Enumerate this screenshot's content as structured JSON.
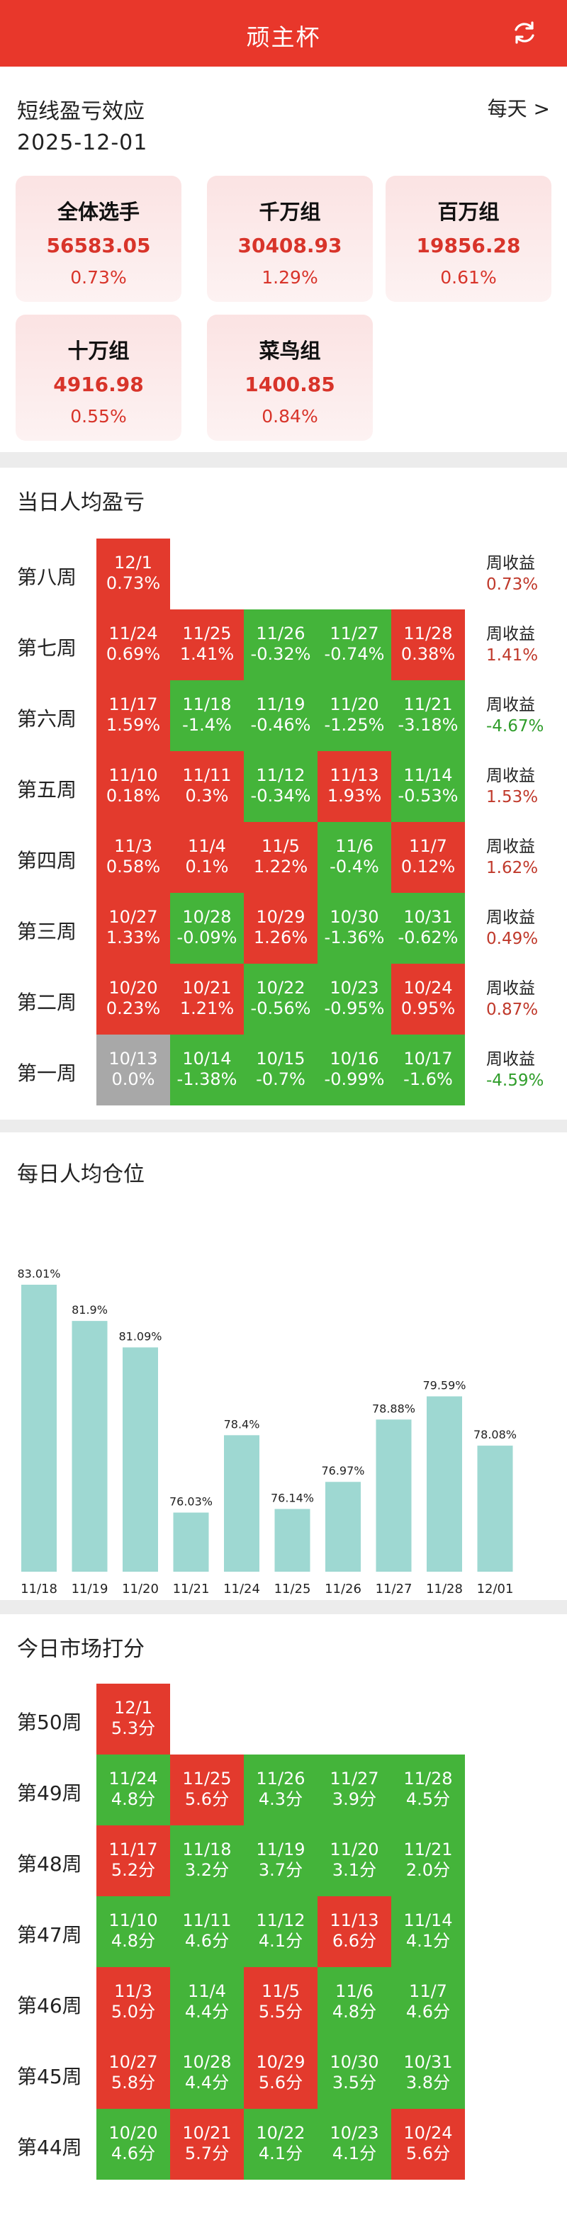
{
  "header": {
    "title": "顽主杯"
  },
  "profit": {
    "title": "短线盈亏效应",
    "date": "2025-12-01",
    "frequency": "每天 >",
    "cards": [
      {
        "name": "全体选手",
        "value": "56583.05",
        "pct": "0.73%"
      },
      {
        "name": "千万组",
        "value": "30408.93",
        "pct": "1.29%"
      },
      {
        "name": "百万组",
        "value": "19856.28",
        "pct": "0.61%"
      },
      {
        "name": "十万组",
        "value": "4916.98",
        "pct": "0.55%"
      },
      {
        "name": "菜鸟组",
        "value": "1400.85",
        "pct": "0.84%"
      }
    ]
  },
  "daily_pnl": {
    "title": "当日人均盈亏",
    "weekly_label": "周收益",
    "weeks": [
      {
        "label": "第八周",
        "weekly": "0.73%",
        "weekly_sign": "pos",
        "cells": [
          {
            "date": "12/1",
            "value": "0.73%",
            "color": "red"
          }
        ]
      },
      {
        "label": "第七周",
        "weekly": "1.41%",
        "weekly_sign": "pos",
        "cells": [
          {
            "date": "11/24",
            "value": "0.69%",
            "color": "red"
          },
          {
            "date": "11/25",
            "value": "1.41%",
            "color": "red"
          },
          {
            "date": "11/26",
            "value": "-0.32%",
            "color": "green"
          },
          {
            "date": "11/27",
            "value": "-0.74%",
            "color": "green"
          },
          {
            "date": "11/28",
            "value": "0.38%",
            "color": "red"
          }
        ]
      },
      {
        "label": "第六周",
        "weekly": "-4.67%",
        "weekly_sign": "neg",
        "cells": [
          {
            "date": "11/17",
            "value": "1.59%",
            "color": "red"
          },
          {
            "date": "11/18",
            "value": "-1.4%",
            "color": "green"
          },
          {
            "date": "11/19",
            "value": "-0.46%",
            "color": "green"
          },
          {
            "date": "11/20",
            "value": "-1.25%",
            "color": "green"
          },
          {
            "date": "11/21",
            "value": "-3.18%",
            "color": "green"
          }
        ]
      },
      {
        "label": "第五周",
        "weekly": "1.53%",
        "weekly_sign": "pos",
        "cells": [
          {
            "date": "11/10",
            "value": "0.18%",
            "color": "red"
          },
          {
            "date": "11/11",
            "value": "0.3%",
            "color": "red"
          },
          {
            "date": "11/12",
            "value": "-0.34%",
            "color": "green"
          },
          {
            "date": "11/13",
            "value": "1.93%",
            "color": "red"
          },
          {
            "date": "11/14",
            "value": "-0.53%",
            "color": "green"
          }
        ]
      },
      {
        "label": "第四周",
        "weekly": "1.62%",
        "weekly_sign": "pos",
        "cells": [
          {
            "date": "11/3",
            "value": "0.58%",
            "color": "red"
          },
          {
            "date": "11/4",
            "value": "0.1%",
            "color": "red"
          },
          {
            "date": "11/5",
            "value": "1.22%",
            "color": "red"
          },
          {
            "date": "11/6",
            "value": "-0.4%",
            "color": "green"
          },
          {
            "date": "11/7",
            "value": "0.12%",
            "color": "red"
          }
        ]
      },
      {
        "label": "第三周",
        "weekly": "0.49%",
        "weekly_sign": "pos",
        "cells": [
          {
            "date": "10/27",
            "value": "1.33%",
            "color": "red"
          },
          {
            "date": "10/28",
            "value": "-0.09%",
            "color": "green"
          },
          {
            "date": "10/29",
            "value": "1.26%",
            "color": "red"
          },
          {
            "date": "10/30",
            "value": "-1.36%",
            "color": "green"
          },
          {
            "date": "10/31",
            "value": "-0.62%",
            "color": "green"
          }
        ]
      },
      {
        "label": "第二周",
        "weekly": "0.87%",
        "weekly_sign": "pos",
        "cells": [
          {
            "date": "10/20",
            "value": "0.23%",
            "color": "red"
          },
          {
            "date": "10/21",
            "value": "1.21%",
            "color": "red"
          },
          {
            "date": "10/22",
            "value": "-0.56%",
            "color": "green"
          },
          {
            "date": "10/23",
            "value": "-0.95%",
            "color": "green"
          },
          {
            "date": "10/24",
            "value": "0.95%",
            "color": "red"
          }
        ]
      },
      {
        "label": "第一周",
        "weekly": "-4.59%",
        "weekly_sign": "neg",
        "cells": [
          {
            "date": "10/13",
            "value": "0.0%",
            "color": "gray"
          },
          {
            "date": "10/14",
            "value": "-1.38%",
            "color": "green"
          },
          {
            "date": "10/15",
            "value": "-0.7%",
            "color": "green"
          },
          {
            "date": "10/16",
            "value": "-0.99%",
            "color": "green"
          },
          {
            "date": "10/17",
            "value": "-1.6%",
            "color": "green"
          }
        ]
      }
    ]
  },
  "position": {
    "title": "每日人均仓位"
  },
  "chart_data": {
    "type": "bar",
    "categories": [
      "11/18",
      "11/19",
      "11/20",
      "11/21",
      "11/24",
      "11/25",
      "11/26",
      "11/27",
      "11/28",
      "12/01"
    ],
    "values": [
      83.01,
      81.9,
      81.09,
      76.03,
      78.4,
      76.14,
      76.97,
      78.88,
      79.59,
      78.08
    ],
    "value_labels": [
      "83.01%",
      "81.9%",
      "81.09%",
      "76.03%",
      "78.4%",
      "76.14%",
      "76.97%",
      "78.88%",
      "79.59%",
      "78.08%"
    ],
    "ylim": [
      75,
      83.01
    ],
    "bar_color": "#9ed8d2",
    "title": "",
    "xlabel": "",
    "ylabel": ""
  },
  "market": {
    "title": "今日市场打分",
    "weeks": [
      {
        "label": "第50周",
        "cells": [
          {
            "date": "12/1",
            "value": "5.3分",
            "color": "red"
          }
        ]
      },
      {
        "label": "第49周",
        "cells": [
          {
            "date": "11/24",
            "value": "4.8分",
            "color": "green"
          },
          {
            "date": "11/25",
            "value": "5.6分",
            "color": "red"
          },
          {
            "date": "11/26",
            "value": "4.3分",
            "color": "green"
          },
          {
            "date": "11/27",
            "value": "3.9分",
            "color": "green"
          },
          {
            "date": "11/28",
            "value": "4.5分",
            "color": "green"
          }
        ]
      },
      {
        "label": "第48周",
        "cells": [
          {
            "date": "11/17",
            "value": "5.2分",
            "color": "red"
          },
          {
            "date": "11/18",
            "value": "3.2分",
            "color": "green"
          },
          {
            "date": "11/19",
            "value": "3.7分",
            "color": "green"
          },
          {
            "date": "11/20",
            "value": "3.1分",
            "color": "green"
          },
          {
            "date": "11/21",
            "value": "2.0分",
            "color": "green"
          }
        ]
      },
      {
        "label": "第47周",
        "cells": [
          {
            "date": "11/10",
            "value": "4.8分",
            "color": "green"
          },
          {
            "date": "11/11",
            "value": "4.6分",
            "color": "green"
          },
          {
            "date": "11/12",
            "value": "4.1分",
            "color": "green"
          },
          {
            "date": "11/13",
            "value": "6.6分",
            "color": "red"
          },
          {
            "date": "11/14",
            "value": "4.1分",
            "color": "green"
          }
        ]
      },
      {
        "label": "第46周",
        "cells": [
          {
            "date": "11/3",
            "value": "5.0分",
            "color": "red"
          },
          {
            "date": "11/4",
            "value": "4.4分",
            "color": "green"
          },
          {
            "date": "11/5",
            "value": "5.5分",
            "color": "red"
          },
          {
            "date": "11/6",
            "value": "4.8分",
            "color": "green"
          },
          {
            "date": "11/7",
            "value": "4.6分",
            "color": "green"
          }
        ]
      },
      {
        "label": "第45周",
        "cells": [
          {
            "date": "10/27",
            "value": "5.8分",
            "color": "red"
          },
          {
            "date": "10/28",
            "value": "4.4分",
            "color": "green"
          },
          {
            "date": "10/29",
            "value": "5.6分",
            "color": "red"
          },
          {
            "date": "10/30",
            "value": "3.5分",
            "color": "green"
          },
          {
            "date": "10/31",
            "value": "3.8分",
            "color": "green"
          }
        ]
      },
      {
        "label": "第44周",
        "cells": [
          {
            "date": "10/20",
            "value": "4.6分",
            "color": "green"
          },
          {
            "date": "10/21",
            "value": "5.7分",
            "color": "red"
          },
          {
            "date": "10/22",
            "value": "4.1分",
            "color": "green"
          },
          {
            "date": "10/23",
            "value": "4.1分",
            "color": "green"
          },
          {
            "date": "10/24",
            "value": "5.6分",
            "color": "red"
          }
        ]
      }
    ]
  },
  "colors": {
    "accent": "#e8372b",
    "up": "#e33a2d",
    "down": "#44b43a",
    "flat": "#a8a8a8"
  }
}
